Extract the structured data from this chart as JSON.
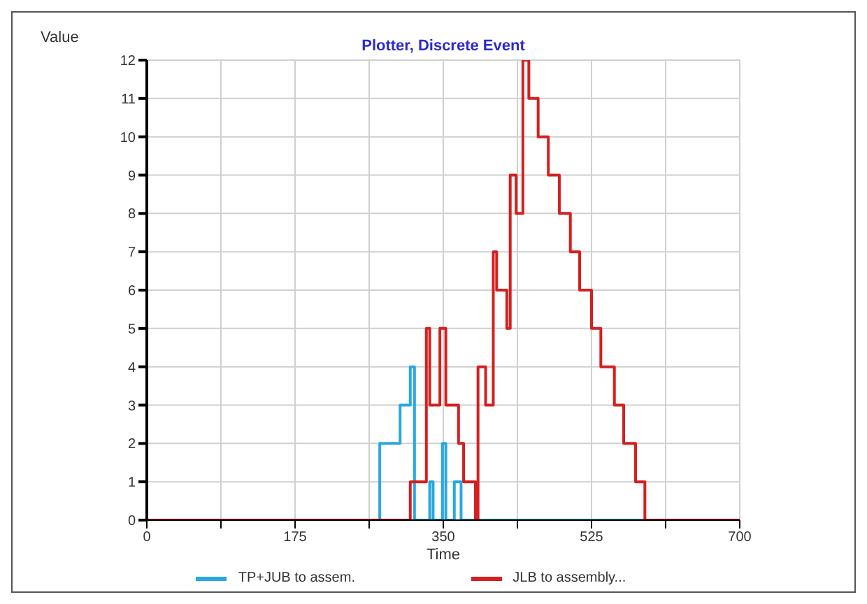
{
  "chart_data": {
    "type": "step",
    "title": "Plotter, Discrete Event",
    "xlabel": "Time",
    "ylabel": "Value",
    "xlim": [
      0,
      700
    ],
    "xticks": [
      0,
      {
        "value": 87.5,
        "label": null
      },
      175,
      {
        "value": 262.5,
        "label": null
      },
      350,
      {
        "value": 437.5,
        "label": null
      },
      525,
      {
        "value": 612.5,
        "label": null
      },
      700
    ],
    "ylim": [
      0,
      12
    ],
    "yticks": [
      0,
      1,
      2,
      3,
      4,
      5,
      6,
      7,
      8,
      9,
      10,
      11,
      12
    ],
    "grid": true,
    "legend": "bottom",
    "line_style": "solid",
    "marker": "none",
    "series": [
      {
        "name": "TP+JUB to assem.",
        "color": "#29a8e0",
        "x": [
          0,
          275,
          299,
          311,
          316,
          334,
          338,
          349,
          353,
          363,
          371,
          700
        ],
        "values": [
          0,
          2,
          3,
          4,
          0,
          1,
          0,
          2,
          0,
          1,
          0,
          0
        ]
      },
      {
        "name": "JLB to assembly...",
        "color": "#d42020",
        "x": [
          0,
          311,
          330,
          334,
          346,
          353,
          368,
          374,
          388,
          391,
          400,
          409,
          413,
          425,
          429,
          436,
          444,
          451,
          462,
          474,
          487,
          500,
          511,
          525,
          536,
          552,
          563,
          577,
          588,
          700
        ],
        "values": [
          0,
          1,
          5,
          3,
          5,
          3,
          2,
          1,
          0,
          4,
          3,
          7,
          6,
          5,
          9,
          8,
          12,
          11,
          10,
          9,
          8,
          7,
          6,
          5,
          4,
          3,
          2,
          1,
          0,
          0
        ]
      }
    ]
  }
}
